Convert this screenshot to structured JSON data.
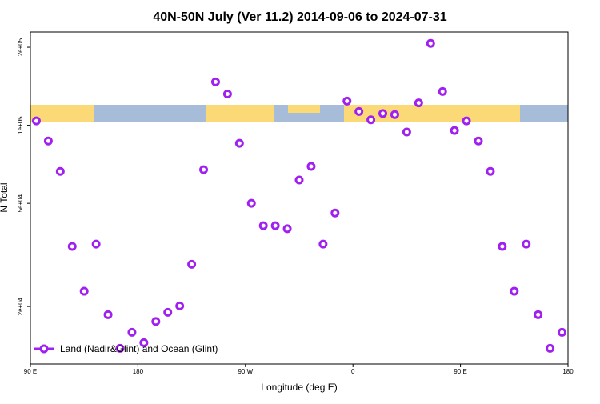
{
  "chart_data": {
    "type": "scatter",
    "title": "40N-50N July (Ver 11.2)   2014-09-06 to 2024-07-31",
    "x_label": "Longitude (deg E)",
    "y_label": "N Total",
    "log_y": true,
    "xlim": [
      90,
      540
    ],
    "xticks": [
      {
        "value": 90,
        "label": "90 E"
      },
      {
        "value": 180,
        "label": "180"
      },
      {
        "value": 270,
        "label": "90 W"
      },
      {
        "value": 360,
        "label": "0"
      },
      {
        "value": 450,
        "label": "90 E"
      },
      {
        "value": 540,
        "label": "180"
      }
    ],
    "ylim": [
      12000,
      229000
    ],
    "yticks": [
      {
        "value": 20000,
        "label": "2e+04"
      },
      {
        "value": 50000,
        "label": "5e+04"
      },
      {
        "value": 100000,
        "label": "1e+05"
      },
      {
        "value": 200000,
        "label": "2e+05"
      }
    ],
    "legend": "bottom-left",
    "series": [
      {
        "name": "Land (Nadir&Glint) and Ocean (Glint)",
        "color": "#a020f0",
        "x": [
          95,
          105,
          115,
          125,
          135,
          145,
          155,
          165,
          175,
          185,
          195,
          205,
          215,
          225,
          235,
          245,
          255,
          265,
          275,
          285,
          295,
          305,
          315,
          325,
          335,
          345,
          355,
          365,
          375,
          385,
          395,
          405,
          415,
          425,
          435,
          445,
          455,
          465,
          475,
          485,
          495,
          505,
          515,
          525,
          535
        ],
        "values": [
          104000,
          87000,
          66400,
          34100,
          22900,
          34800,
          18600,
          13800,
          15900,
          14500,
          17500,
          19000,
          20100,
          29100,
          67400,
          147000,
          132000,
          85200,
          50000,
          41000,
          41000,
          39900,
          61500,
          69400,
          34800,
          45900,
          124000,
          113000,
          105000,
          111000,
          110000,
          94200,
          122000,
          207000,
          135000,
          95500,
          104000,
          87000,
          66400,
          34100,
          22900,
          34800,
          18600,
          13800,
          15900
        ]
      }
    ]
  }
}
